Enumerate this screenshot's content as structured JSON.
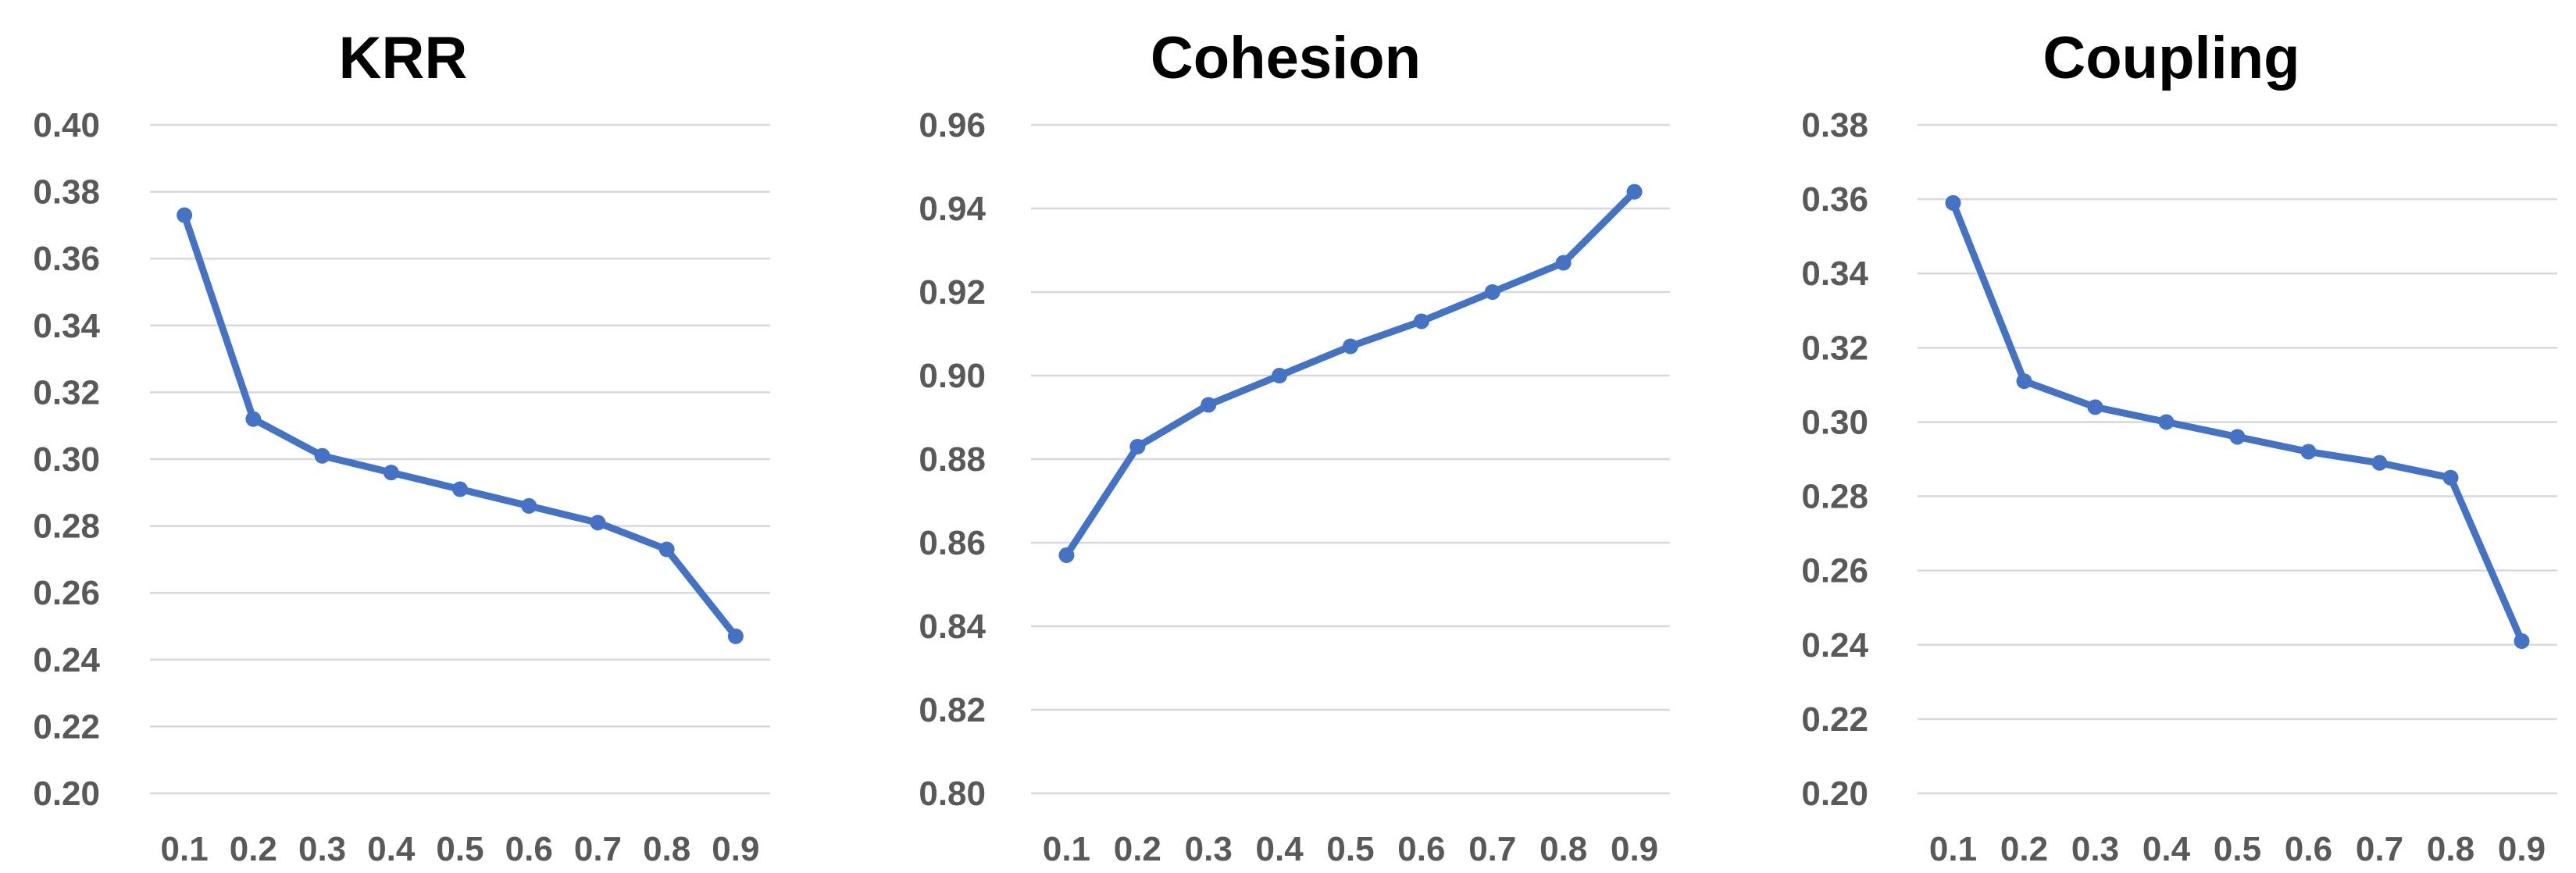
{
  "chart_data": [
    {
      "type": "line",
      "title": "KRR",
      "x": [
        "0.1",
        "0.2",
        "0.3",
        "0.4",
        "0.5",
        "0.6",
        "0.7",
        "0.8",
        "0.9"
      ],
      "series": [
        {
          "values": [
            0.373,
            0.312,
            0.301,
            0.296,
            0.291,
            0.286,
            0.281,
            0.273,
            0.247
          ]
        }
      ],
      "ylim": [
        0.2,
        0.4
      ],
      "yticks": [
        "0.20",
        "0.22",
        "0.24",
        "0.26",
        "0.28",
        "0.30",
        "0.32",
        "0.34",
        "0.36",
        "0.38",
        "0.40"
      ],
      "grid": true,
      "color": "#4472c4"
    },
    {
      "type": "line",
      "title": "Cohesion",
      "x": [
        "0.1",
        "0.2",
        "0.3",
        "0.4",
        "0.5",
        "0.6",
        "0.7",
        "0.8",
        "0.9"
      ],
      "series": [
        {
          "values": [
            0.857,
            0.883,
            0.893,
            0.9,
            0.907,
            0.913,
            0.92,
            0.927,
            0.944
          ]
        }
      ],
      "ylim": [
        0.8,
        0.96
      ],
      "yticks": [
        "0.80",
        "0.82",
        "0.84",
        "0.86",
        "0.88",
        "0.90",
        "0.92",
        "0.94",
        "0.96"
      ],
      "grid": true,
      "color": "#4472c4"
    },
    {
      "type": "line",
      "title": "Coupling",
      "x": [
        "0.1",
        "0.2",
        "0.3",
        "0.4",
        "0.5",
        "0.6",
        "0.7",
        "0.8",
        "0.9"
      ],
      "series": [
        {
          "values": [
            0.359,
            0.311,
            0.304,
            0.3,
            0.296,
            0.292,
            0.289,
            0.285,
            0.241
          ]
        }
      ],
      "ylim": [
        0.2,
        0.38
      ],
      "yticks": [
        "0.20",
        "0.22",
        "0.24",
        "0.26",
        "0.28",
        "0.30",
        "0.32",
        "0.34",
        "0.36",
        "0.38"
      ],
      "grid": true,
      "color": "#4472c4"
    }
  ]
}
